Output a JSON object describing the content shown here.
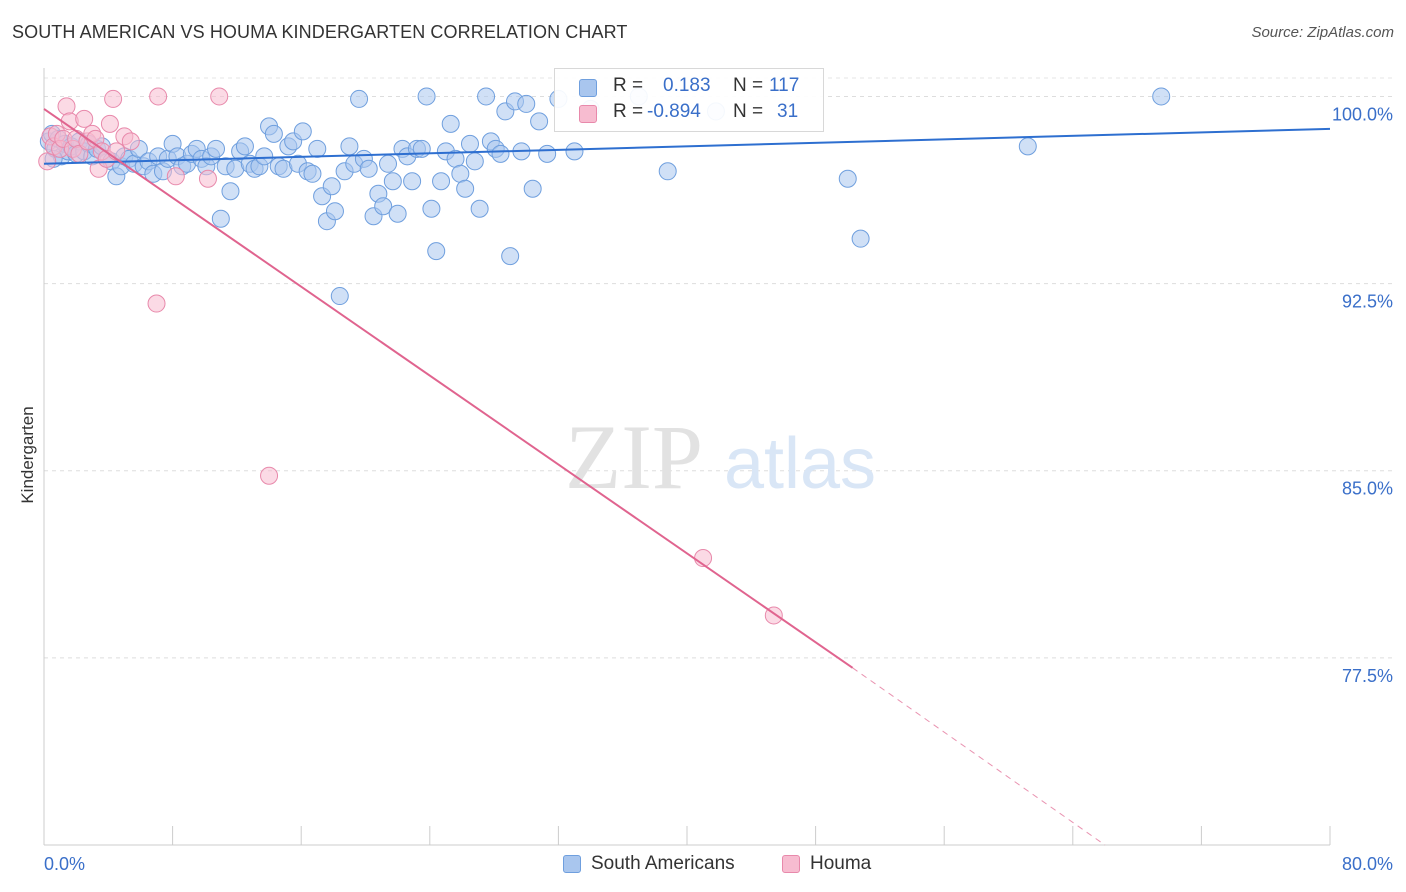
{
  "title": "SOUTH AMERICAN VS HOUMA KINDERGARTEN CORRELATION CHART",
  "source": "Source: ZipAtlas.com",
  "watermark": {
    "zip": "ZIP",
    "atlas": "atlas"
  },
  "legend_stats": [
    {
      "r_label": "R =",
      "r_value": "0.183",
      "n_label": "N =",
      "n_value": "117",
      "color": "#a9c6ee",
      "border": "#6f9fde"
    },
    {
      "r_label": "R =",
      "r_value": "-0.894",
      "n_label": "N =",
      "n_value": "31",
      "color": "#f7bcd0",
      "border": "#e889ab"
    }
  ],
  "legend_bottom": [
    {
      "label": "South Americans",
      "color": "#a9c6ee",
      "border": "#6f9fde"
    },
    {
      "label": "Houma",
      "color": "#f7bcd0",
      "border": "#e889ab"
    }
  ],
  "chart_data": {
    "type": "scatter",
    "title": "SOUTH AMERICAN VS HOUMA KINDERGARTEN CORRELATION CHART",
    "xlabel": "",
    "ylabel": "Kindergarten",
    "xlim": [
      0,
      80
    ],
    "ylim": [
      70,
      101.3
    ],
    "x_tick_labels": [
      "0.0%",
      "80.0%"
    ],
    "y_ticks": [
      {
        "value": 100,
        "label": "100.0%"
      },
      {
        "value": 92.5,
        "label": "92.5%"
      },
      {
        "value": 85,
        "label": "85.0%"
      },
      {
        "value": 77.5,
        "label": "77.5%"
      }
    ],
    "grid": true,
    "legend_position": "top-center",
    "series": [
      {
        "name": "South Americans",
        "color": "#a9c6ee",
        "stroke": "#6f9fde",
        "line_color": "#2e6fd0",
        "r": 0.183,
        "n": 117,
        "trend": {
          "x": [
            0,
            80
          ],
          "y": [
            97.3,
            98.7
          ]
        },
        "trend_dashed": null,
        "points": [
          [
            0.3,
            98.2
          ],
          [
            0.5,
            98.5
          ],
          [
            0.7,
            97.9
          ],
          [
            0.9,
            98.3
          ],
          [
            1.1,
            97.6
          ],
          [
            1.3,
            98.1
          ],
          [
            1.5,
            97.8
          ],
          [
            1.7,
            98.0
          ],
          [
            2.0,
            97.7
          ],
          [
            2.2,
            98.2
          ],
          [
            2.5,
            97.8
          ],
          [
            2.8,
            98.1
          ],
          [
            3.0,
            97.6
          ],
          [
            3.3,
            97.9
          ],
          [
            3.6,
            98.0
          ],
          [
            3.9,
            97.5
          ],
          [
            4.2,
            97.4
          ],
          [
            4.5,
            96.8
          ],
          [
            4.8,
            97.2
          ],
          [
            5.0,
            97.6
          ],
          [
            5.3,
            97.5
          ],
          [
            5.6,
            97.3
          ],
          [
            5.9,
            97.9
          ],
          [
            6.2,
            97.2
          ],
          [
            6.5,
            97.4
          ],
          [
            6.8,
            96.9
          ],
          [
            7.1,
            97.6
          ],
          [
            7.4,
            97.0
          ],
          [
            7.7,
            97.5
          ],
          [
            8.0,
            98.1
          ],
          [
            8.3,
            97.6
          ],
          [
            8.6,
            97.2
          ],
          [
            8.9,
            97.3
          ],
          [
            9.2,
            97.7
          ],
          [
            9.5,
            97.9
          ],
          [
            9.8,
            97.5
          ],
          [
            10.1,
            97.2
          ],
          [
            10.4,
            97.6
          ],
          [
            10.7,
            97.9
          ],
          [
            11.0,
            95.1
          ],
          [
            11.3,
            97.2
          ],
          [
            11.6,
            96.2
          ],
          [
            11.9,
            97.1
          ],
          [
            12.2,
            97.8
          ],
          [
            12.5,
            98.0
          ],
          [
            12.8,
            97.3
          ],
          [
            13.1,
            97.1
          ],
          [
            13.4,
            97.2
          ],
          [
            13.7,
            97.6
          ],
          [
            14.0,
            98.8
          ],
          [
            14.3,
            98.5
          ],
          [
            14.6,
            97.2
          ],
          [
            14.9,
            97.1
          ],
          [
            15.2,
            98.0
          ],
          [
            15.5,
            98.2
          ],
          [
            15.8,
            97.3
          ],
          [
            16.1,
            98.6
          ],
          [
            16.4,
            97.0
          ],
          [
            16.7,
            96.9
          ],
          [
            17.0,
            97.9
          ],
          [
            17.3,
            96.0
          ],
          [
            17.6,
            95.0
          ],
          [
            17.9,
            96.4
          ],
          [
            18.1,
            95.4
          ],
          [
            18.4,
            92.0
          ],
          [
            18.7,
            97.0
          ],
          [
            19.0,
            98.0
          ],
          [
            19.3,
            97.3
          ],
          [
            19.6,
            99.9
          ],
          [
            19.9,
            97.5
          ],
          [
            20.2,
            97.1
          ],
          [
            20.5,
            95.2
          ],
          [
            20.8,
            96.1
          ],
          [
            21.1,
            95.6
          ],
          [
            21.4,
            97.3
          ],
          [
            21.7,
            96.6
          ],
          [
            22.0,
            95.3
          ],
          [
            22.3,
            97.9
          ],
          [
            22.6,
            97.6
          ],
          [
            22.9,
            96.6
          ],
          [
            23.2,
            97.9
          ],
          [
            23.5,
            97.9
          ],
          [
            23.8,
            100.0
          ],
          [
            24.1,
            95.5
          ],
          [
            24.4,
            93.8
          ],
          [
            24.7,
            96.6
          ],
          [
            25.0,
            97.8
          ],
          [
            25.3,
            98.9
          ],
          [
            25.6,
            97.5
          ],
          [
            25.9,
            96.9
          ],
          [
            26.2,
            96.3
          ],
          [
            26.5,
            98.1
          ],
          [
            26.8,
            97.4
          ],
          [
            27.1,
            95.5
          ],
          [
            27.5,
            100.0
          ],
          [
            27.8,
            98.2
          ],
          [
            28.1,
            97.9
          ],
          [
            28.4,
            97.7
          ],
          [
            28.7,
            99.4
          ],
          [
            29.0,
            93.6
          ],
          [
            29.3,
            99.8
          ],
          [
            29.7,
            97.8
          ],
          [
            30.0,
            99.7
          ],
          [
            30.4,
            96.3
          ],
          [
            30.8,
            99.0
          ],
          [
            31.3,
            97.7
          ],
          [
            32.0,
            99.9
          ],
          [
            33.0,
            97.8
          ],
          [
            34.0,
            99.5
          ],
          [
            37.0,
            100.0
          ],
          [
            38.8,
            97.0
          ],
          [
            41.8,
            99.4
          ],
          [
            50.0,
            96.7
          ],
          [
            50.8,
            94.3
          ],
          [
            61.2,
            98.0
          ],
          [
            69.5,
            100.0
          ],
          [
            0.6,
            97.5
          ]
        ]
      },
      {
        "name": "Houma",
        "color": "#f7bcd0",
        "stroke": "#e889ab",
        "line_color": "#e0648f",
        "r": -0.894,
        "n": 31,
        "trend": {
          "x": [
            0,
            50.3
          ],
          "y": [
            99.5,
            77.1
          ]
        },
        "trend_dashed": {
          "x": [
            50.3,
            66.0
          ],
          "y": [
            77.1,
            70.0
          ]
        },
        "points": [
          [
            0.2,
            97.4
          ],
          [
            0.4,
            98.4
          ],
          [
            0.6,
            98.0
          ],
          [
            0.8,
            98.5
          ],
          [
            1.0,
            97.9
          ],
          [
            1.2,
            98.3
          ],
          [
            1.4,
            99.6
          ],
          [
            1.6,
            99.0
          ],
          [
            1.8,
            97.9
          ],
          [
            2.0,
            98.3
          ],
          [
            2.2,
            97.7
          ],
          [
            2.5,
            99.1
          ],
          [
            2.7,
            98.2
          ],
          [
            3.0,
            98.5
          ],
          [
            3.2,
            98.3
          ],
          [
            3.4,
            97.1
          ],
          [
            3.6,
            97.8
          ],
          [
            3.9,
            97.5
          ],
          [
            4.1,
            98.9
          ],
          [
            4.3,
            99.9
          ],
          [
            4.5,
            97.8
          ],
          [
            5.0,
            98.4
          ],
          [
            5.4,
            98.2
          ],
          [
            7.1,
            100.0
          ],
          [
            8.2,
            96.8
          ],
          [
            10.2,
            96.7
          ],
          [
            10.9,
            100.0
          ],
          [
            7.0,
            91.7
          ],
          [
            14.0,
            84.8
          ],
          [
            41.0,
            81.5
          ],
          [
            45.4,
            79.2
          ]
        ]
      }
    ]
  }
}
